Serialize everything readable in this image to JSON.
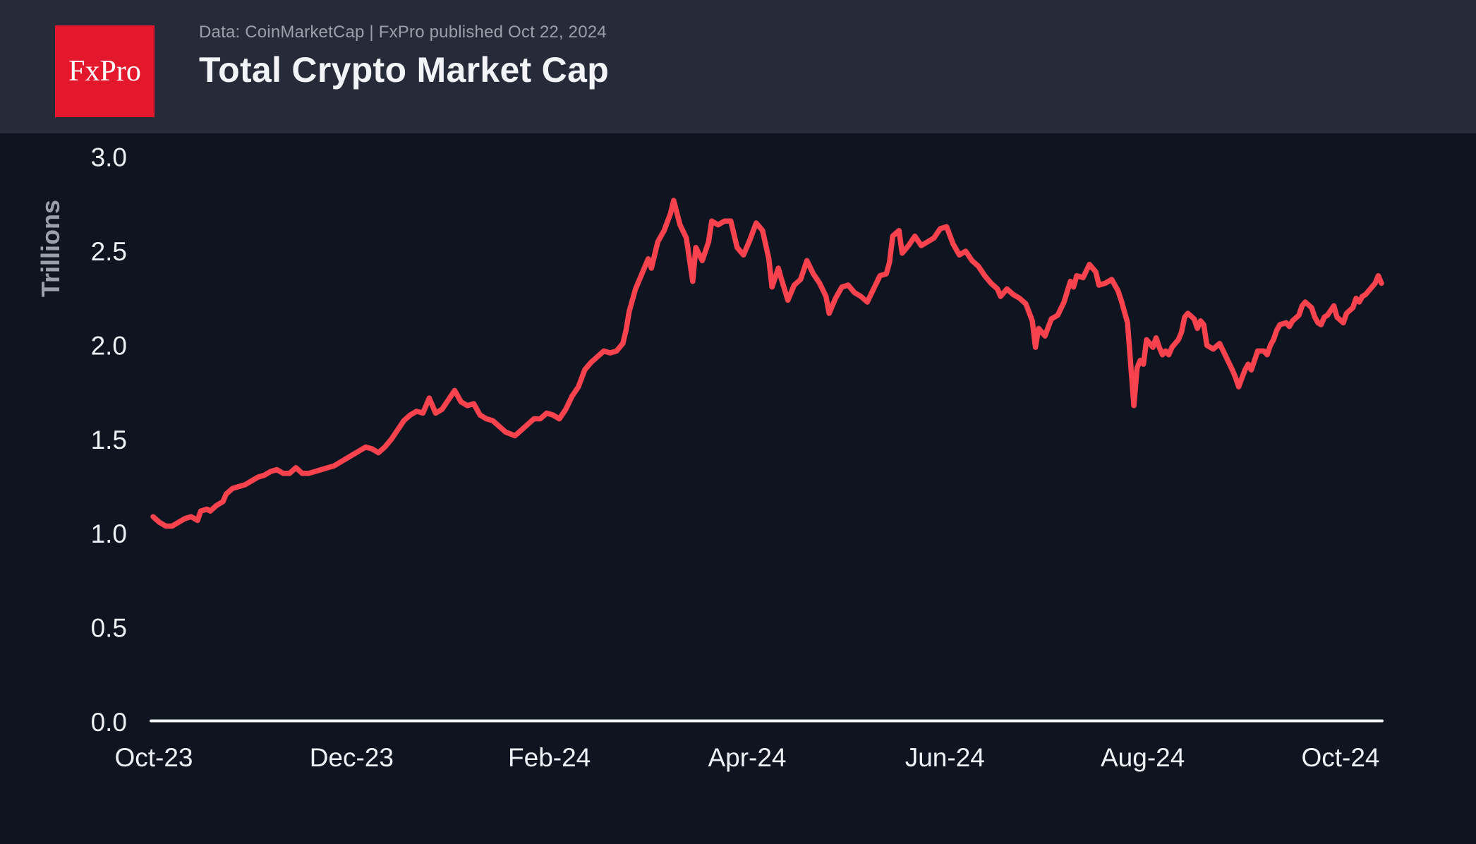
{
  "header": {
    "logo_text": "FxPro",
    "source_line": "Data: CoinMarketCap | FxPro published Oct 22, 2024",
    "title": "Total Crypto Market Cap"
  },
  "colors": {
    "header_bg": "#272b39",
    "chart_bg": "#0e1420",
    "logo_red": "#e3182c",
    "line_red": "#f8434e",
    "axis_text": "#eef1f5",
    "muted_text": "#9aa0ac",
    "axis_line": "#f2f4f6"
  },
  "chart_data": {
    "type": "line",
    "title": "Total Crypto Market Cap",
    "xlabel": "",
    "ylabel": "Trillions",
    "ylim": [
      0.0,
      3.0
    ],
    "grid": false,
    "legend": null,
    "x_range": [
      "2023-10-01",
      "2024-10-22"
    ],
    "y_tick_labels": [
      "0.0",
      "0.5",
      "1.0",
      "1.5",
      "2.0",
      "2.5",
      "3.0"
    ],
    "x_tick_labels": [
      "Oct-23",
      "Dec-23",
      "Feb-24",
      "Apr-24",
      "Jun-24",
      "Aug-24",
      "Oct-24"
    ],
    "series": [
      {
        "name": "Total crypto market cap (USD trillions)",
        "points": [
          [
            "2023-10-01",
            1.09
          ],
          [
            "2023-10-03",
            1.06
          ],
          [
            "2023-10-05",
            1.04
          ],
          [
            "2023-10-07",
            1.04
          ],
          [
            "2023-10-09",
            1.06
          ],
          [
            "2023-10-11",
            1.08
          ],
          [
            "2023-10-13",
            1.09
          ],
          [
            "2023-10-15",
            1.07
          ],
          [
            "2023-10-16",
            1.12
          ],
          [
            "2023-10-18",
            1.13
          ],
          [
            "2023-10-19",
            1.12
          ],
          [
            "2023-10-21",
            1.15
          ],
          [
            "2023-10-23",
            1.17
          ],
          [
            "2023-10-24",
            1.21
          ],
          [
            "2023-10-26",
            1.24
          ],
          [
            "2023-10-28",
            1.25
          ],
          [
            "2023-10-30",
            1.26
          ],
          [
            "2023-11-01",
            1.28
          ],
          [
            "2023-11-03",
            1.3
          ],
          [
            "2023-11-05",
            1.31
          ],
          [
            "2023-11-07",
            1.33
          ],
          [
            "2023-11-09",
            1.34
          ],
          [
            "2023-11-11",
            1.32
          ],
          [
            "2023-11-13",
            1.32
          ],
          [
            "2023-11-15",
            1.35
          ],
          [
            "2023-11-17",
            1.32
          ],
          [
            "2023-11-19",
            1.32
          ],
          [
            "2023-11-21",
            1.33
          ],
          [
            "2023-11-23",
            1.34
          ],
          [
            "2023-11-25",
            1.35
          ],
          [
            "2023-11-27",
            1.36
          ],
          [
            "2023-11-29",
            1.38
          ],
          [
            "2023-12-01",
            1.4
          ],
          [
            "2023-12-03",
            1.42
          ],
          [
            "2023-12-05",
            1.44
          ],
          [
            "2023-12-07",
            1.46
          ],
          [
            "2023-12-09",
            1.45
          ],
          [
            "2023-12-11",
            1.43
          ],
          [
            "2023-12-13",
            1.46
          ],
          [
            "2023-12-15",
            1.5
          ],
          [
            "2023-12-17",
            1.55
          ],
          [
            "2023-12-19",
            1.6
          ],
          [
            "2023-12-21",
            1.63
          ],
          [
            "2023-12-23",
            1.65
          ],
          [
            "2023-12-25",
            1.64
          ],
          [
            "2023-12-27",
            1.72
          ],
          [
            "2023-12-29",
            1.64
          ],
          [
            "2023-12-31",
            1.66
          ],
          [
            "2024-01-02",
            1.71
          ],
          [
            "2024-01-04",
            1.76
          ],
          [
            "2024-01-06",
            1.7
          ],
          [
            "2024-01-08",
            1.68
          ],
          [
            "2024-01-10",
            1.69
          ],
          [
            "2024-01-12",
            1.63
          ],
          [
            "2024-01-14",
            1.61
          ],
          [
            "2024-01-16",
            1.6
          ],
          [
            "2024-01-18",
            1.57
          ],
          [
            "2024-01-20",
            1.54
          ],
          [
            "2024-01-23",
            1.52
          ],
          [
            "2024-01-25",
            1.55
          ],
          [
            "2024-01-27",
            1.58
          ],
          [
            "2024-01-29",
            1.61
          ],
          [
            "2024-01-31",
            1.61
          ],
          [
            "2024-02-02",
            1.64
          ],
          [
            "2024-02-04",
            1.63
          ],
          [
            "2024-02-06",
            1.61
          ],
          [
            "2024-02-08",
            1.66
          ],
          [
            "2024-02-10",
            1.73
          ],
          [
            "2024-02-12",
            1.78
          ],
          [
            "2024-02-14",
            1.87
          ],
          [
            "2024-02-16",
            1.91
          ],
          [
            "2024-02-18",
            1.94
          ],
          [
            "2024-02-20",
            1.97
          ],
          [
            "2024-02-22",
            1.96
          ],
          [
            "2024-02-24",
            1.97
          ],
          [
            "2024-02-26",
            2.01
          ],
          [
            "2024-02-27",
            2.08
          ],
          [
            "2024-02-28",
            2.18
          ],
          [
            "2024-03-01",
            2.3
          ],
          [
            "2024-03-03",
            2.38
          ],
          [
            "2024-03-05",
            2.46
          ],
          [
            "2024-03-06",
            2.41
          ],
          [
            "2024-03-08",
            2.55
          ],
          [
            "2024-03-10",
            2.61
          ],
          [
            "2024-03-12",
            2.7
          ],
          [
            "2024-03-13",
            2.77
          ],
          [
            "2024-03-15",
            2.64
          ],
          [
            "2024-03-17",
            2.57
          ],
          [
            "2024-03-19",
            2.34
          ],
          [
            "2024-03-20",
            2.52
          ],
          [
            "2024-03-22",
            2.45
          ],
          [
            "2024-03-24",
            2.55
          ],
          [
            "2024-03-25",
            2.66
          ],
          [
            "2024-03-27",
            2.64
          ],
          [
            "2024-03-29",
            2.66
          ],
          [
            "2024-03-31",
            2.66
          ],
          [
            "2024-04-02",
            2.52
          ],
          [
            "2024-04-04",
            2.48
          ],
          [
            "2024-04-06",
            2.56
          ],
          [
            "2024-04-08",
            2.65
          ],
          [
            "2024-04-10",
            2.61
          ],
          [
            "2024-04-12",
            2.46
          ],
          [
            "2024-04-13",
            2.31
          ],
          [
            "2024-04-15",
            2.41
          ],
          [
            "2024-04-16",
            2.35
          ],
          [
            "2024-04-18",
            2.24
          ],
          [
            "2024-04-20",
            2.32
          ],
          [
            "2024-04-22",
            2.35
          ],
          [
            "2024-04-24",
            2.45
          ],
          [
            "2024-04-26",
            2.38
          ],
          [
            "2024-04-28",
            2.33
          ],
          [
            "2024-04-30",
            2.26
          ],
          [
            "2024-05-01",
            2.17
          ],
          [
            "2024-05-03",
            2.25
          ],
          [
            "2024-05-05",
            2.31
          ],
          [
            "2024-05-07",
            2.32
          ],
          [
            "2024-05-09",
            2.28
          ],
          [
            "2024-05-11",
            2.26
          ],
          [
            "2024-05-13",
            2.23
          ],
          [
            "2024-05-15",
            2.3
          ],
          [
            "2024-05-17",
            2.37
          ],
          [
            "2024-05-19",
            2.38
          ],
          [
            "2024-05-20",
            2.44
          ],
          [
            "2024-05-21",
            2.58
          ],
          [
            "2024-05-23",
            2.61
          ],
          [
            "2024-05-24",
            2.49
          ],
          [
            "2024-05-26",
            2.53
          ],
          [
            "2024-05-28",
            2.58
          ],
          [
            "2024-05-30",
            2.53
          ],
          [
            "2024-06-01",
            2.55
          ],
          [
            "2024-06-03",
            2.57
          ],
          [
            "2024-06-05",
            2.62
          ],
          [
            "2024-06-07",
            2.63
          ],
          [
            "2024-06-09",
            2.54
          ],
          [
            "2024-06-11",
            2.48
          ],
          [
            "2024-06-13",
            2.5
          ],
          [
            "2024-06-15",
            2.45
          ],
          [
            "2024-06-17",
            2.42
          ],
          [
            "2024-06-19",
            2.37
          ],
          [
            "2024-06-21",
            2.33
          ],
          [
            "2024-06-23",
            2.3
          ],
          [
            "2024-06-24",
            2.26
          ],
          [
            "2024-06-26",
            2.3
          ],
          [
            "2024-06-28",
            2.27
          ],
          [
            "2024-06-30",
            2.25
          ],
          [
            "2024-07-02",
            2.22
          ],
          [
            "2024-07-04",
            2.13
          ],
          [
            "2024-07-05",
            1.99
          ],
          [
            "2024-07-06",
            2.09
          ],
          [
            "2024-07-08",
            2.05
          ],
          [
            "2024-07-10",
            2.14
          ],
          [
            "2024-07-12",
            2.16
          ],
          [
            "2024-07-14",
            2.23
          ],
          [
            "2024-07-16",
            2.34
          ],
          [
            "2024-07-17",
            2.31
          ],
          [
            "2024-07-18",
            2.37
          ],
          [
            "2024-07-20",
            2.36
          ],
          [
            "2024-07-22",
            2.43
          ],
          [
            "2024-07-24",
            2.39
          ],
          [
            "2024-07-25",
            2.32
          ],
          [
            "2024-07-27",
            2.33
          ],
          [
            "2024-07-29",
            2.35
          ],
          [
            "2024-07-31",
            2.29
          ],
          [
            "2024-08-01",
            2.24
          ],
          [
            "2024-08-03",
            2.12
          ],
          [
            "2024-08-05",
            1.68
          ],
          [
            "2024-08-06",
            1.88
          ],
          [
            "2024-08-07",
            1.92
          ],
          [
            "2024-08-08",
            1.9
          ],
          [
            "2024-08-09",
            2.03
          ],
          [
            "2024-08-10",
            2.01
          ],
          [
            "2024-08-11",
            1.99
          ],
          [
            "2024-08-12",
            2.04
          ],
          [
            "2024-08-13",
            1.99
          ],
          [
            "2024-08-14",
            1.95
          ],
          [
            "2024-08-15",
            1.97
          ],
          [
            "2024-08-16",
            1.95
          ],
          [
            "2024-08-17",
            1.99
          ],
          [
            "2024-08-19",
            2.03
          ],
          [
            "2024-08-20",
            2.07
          ],
          [
            "2024-08-21",
            2.15
          ],
          [
            "2024-08-22",
            2.17
          ],
          [
            "2024-08-24",
            2.14
          ],
          [
            "2024-08-25",
            2.09
          ],
          [
            "2024-08-26",
            2.13
          ],
          [
            "2024-08-27",
            2.11
          ],
          [
            "2024-08-28",
            2.0
          ],
          [
            "2024-08-30",
            1.98
          ],
          [
            "2024-09-01",
            2.01
          ],
          [
            "2024-09-03",
            1.94
          ],
          [
            "2024-09-05",
            1.87
          ],
          [
            "2024-09-06",
            1.83
          ],
          [
            "2024-09-07",
            1.78
          ],
          [
            "2024-09-09",
            1.87
          ],
          [
            "2024-09-10",
            1.9
          ],
          [
            "2024-09-11",
            1.87
          ],
          [
            "2024-09-13",
            1.97
          ],
          [
            "2024-09-15",
            1.97
          ],
          [
            "2024-09-16",
            1.95
          ],
          [
            "2024-09-17",
            2.0
          ],
          [
            "2024-09-18",
            2.03
          ],
          [
            "2024-09-19",
            2.08
          ],
          [
            "2024-09-20",
            2.11
          ],
          [
            "2024-09-22",
            2.12
          ],
          [
            "2024-09-23",
            2.1
          ],
          [
            "2024-09-24",
            2.13
          ],
          [
            "2024-09-26",
            2.16
          ],
          [
            "2024-09-27",
            2.21
          ],
          [
            "2024-09-28",
            2.23
          ],
          [
            "2024-09-30",
            2.2
          ],
          [
            "2024-10-01",
            2.15
          ],
          [
            "2024-10-02",
            2.12
          ],
          [
            "2024-10-03",
            2.11
          ],
          [
            "2024-10-04",
            2.15
          ],
          [
            "2024-10-05",
            2.16
          ],
          [
            "2024-10-07",
            2.21
          ],
          [
            "2024-10-08",
            2.15
          ],
          [
            "2024-10-10",
            2.12
          ],
          [
            "2024-10-11",
            2.17
          ],
          [
            "2024-10-13",
            2.2
          ],
          [
            "2024-10-14",
            2.25
          ],
          [
            "2024-10-15",
            2.23
          ],
          [
            "2024-10-16",
            2.26
          ],
          [
            "2024-10-17",
            2.27
          ],
          [
            "2024-10-18",
            2.29
          ],
          [
            "2024-10-19",
            2.31
          ],
          [
            "2024-10-20",
            2.33
          ],
          [
            "2024-10-21",
            2.37
          ],
          [
            "2024-10-22",
            2.33
          ]
        ]
      }
    ]
  }
}
